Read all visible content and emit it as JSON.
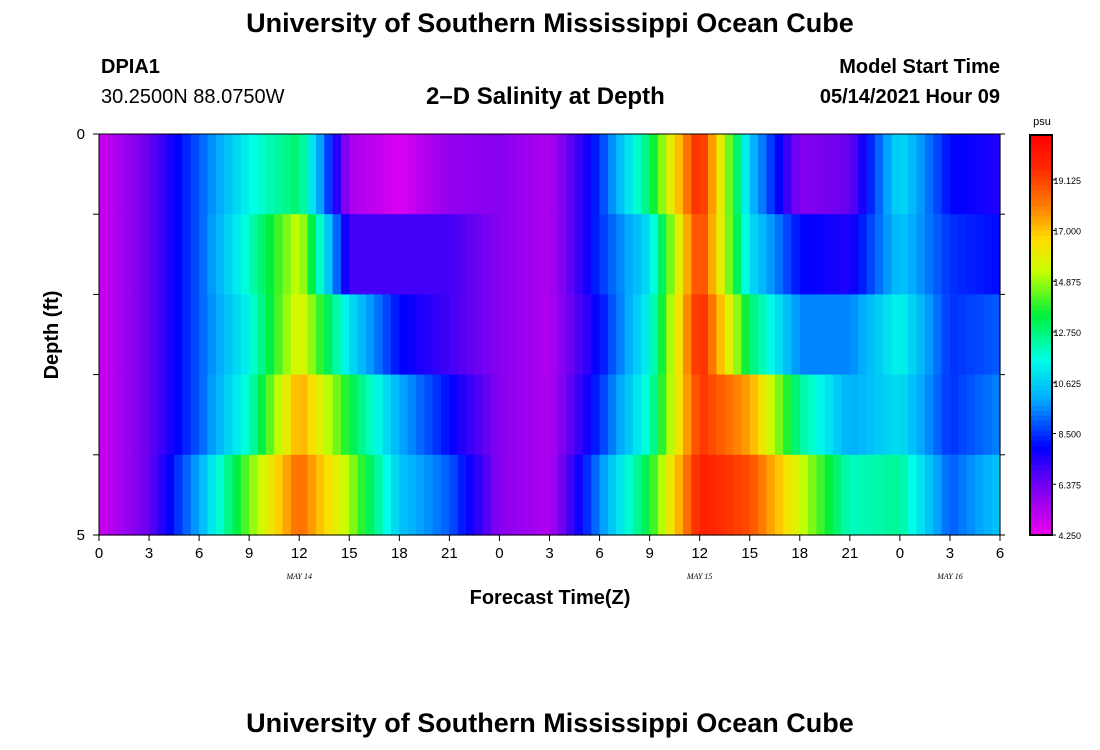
{
  "header": {
    "title": "University of Southern Mississippi Ocean Cube",
    "station": "DPIA1",
    "coordinates": "30.2500N  88.0750W",
    "chart_title": "2–D Salinity at Depth",
    "model_start_label": "Model Start Time",
    "model_start_time": "05/14/2021 Hour 09"
  },
  "footer": {
    "title": "University of Southern Mississippi Ocean Cube"
  },
  "chart_data": {
    "type": "heatmap",
    "title": "2–D Salinity at Depth",
    "xlabel": "Forecast Time(Z)",
    "ylabel": "Depth (ft)",
    "xlim": [
      0,
      54
    ],
    "ylim": [
      0,
      5
    ],
    "y_tick_labels": [
      "0",
      "5"
    ],
    "x_ticks": [
      0,
      3,
      6,
      9,
      12,
      15,
      18,
      21,
      24,
      27,
      30,
      33,
      36,
      39,
      42,
      45,
      48,
      51,
      54
    ],
    "x_tick_labels": [
      "0",
      "3",
      "6",
      "9",
      "12",
      "15",
      "18",
      "21",
      "0",
      "3",
      "6",
      "9",
      "12",
      "15",
      "18",
      "21",
      "0",
      "3",
      "6"
    ],
    "date_labels": [
      {
        "x": 12,
        "label": "MAY 14"
      },
      {
        "x": 36,
        "label": "MAY 15"
      },
      {
        "x": 51,
        "label": "MAY 16"
      }
    ],
    "colorbar": {
      "unit": "psu",
      "min": 4.25,
      "max": 21.0,
      "tick_values": [
        4.25,
        6.375,
        8.5,
        10.625,
        12.75,
        14.875,
        17.0,
        19.125
      ],
      "tick_labels": [
        "4.250",
        "6.375",
        "8.500",
        "10.625",
        "12.750",
        "14.875",
        "17.000",
        "19.125"
      ]
    },
    "depth_layers": [
      "0–1 ft",
      "1–2 ft",
      "2–3 ft",
      "3–4 ft",
      "4–5 ft"
    ],
    "hours": [
      0,
      3,
      6,
      9,
      12,
      15,
      18,
      21,
      24,
      27,
      30,
      33,
      36,
      39,
      42,
      45,
      48,
      51,
      54
    ],
    "salinity_psu": [
      [
        4.8,
        6.5,
        9.0,
        11.5,
        13.0,
        5.5,
        4.6,
        5.8,
        6.0,
        5.3,
        8.5,
        13.0,
        20.0,
        10.5,
        6.0,
        6.5,
        11.0,
        8.0,
        7.5
      ],
      [
        4.8,
        6.5,
        9.0,
        12.0,
        15.5,
        7.0,
        7.0,
        7.0,
        6.0,
        5.3,
        8.5,
        11.0,
        19.5,
        11.0,
        8.0,
        7.5,
        10.5,
        8.5,
        8.0
      ],
      [
        4.8,
        6.5,
        9.0,
        11.5,
        16.0,
        11.0,
        8.0,
        7.0,
        6.0,
        5.3,
        8.0,
        11.5,
        20.0,
        13.0,
        9.5,
        9.5,
        11.5,
        8.5,
        9.0
      ],
      [
        4.8,
        6.5,
        9.0,
        12.0,
        17.5,
        13.5,
        10.0,
        8.0,
        6.0,
        5.3,
        8.5,
        12.0,
        19.5,
        17.5,
        12.5,
        10.0,
        11.0,
        8.5,
        9.5
      ],
      [
        4.8,
        6.5,
        10.0,
        14.5,
        18.5,
        15.0,
        10.5,
        9.0,
        6.0,
        5.3,
        9.5,
        13.5,
        20.0,
        19.0,
        15.5,
        12.0,
        12.5,
        9.0,
        10.5
      ]
    ]
  }
}
